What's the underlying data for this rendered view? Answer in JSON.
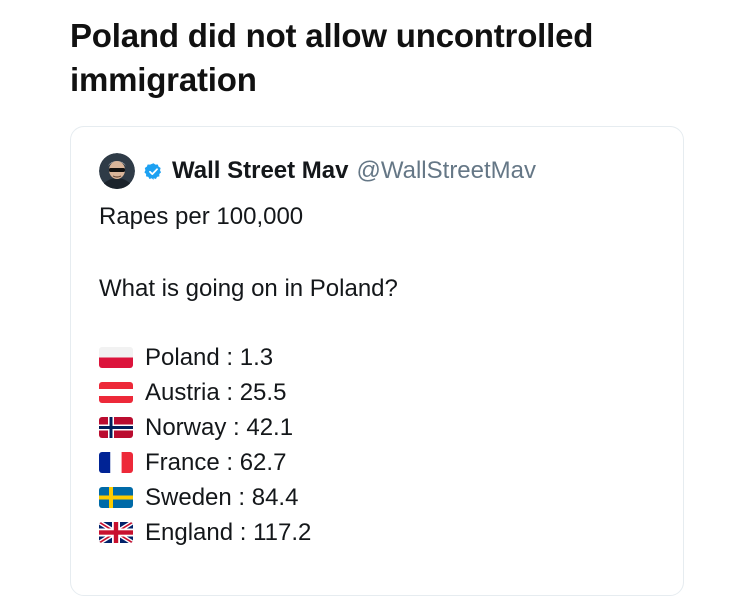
{
  "headline": "Poland did not allow uncontrolled immigration",
  "tweet": {
    "display_name": "Wall Street Mav",
    "handle": "@WallStreetMav",
    "verified_icon": "verified-badge-icon",
    "avatar_icon": "avatar-icon",
    "line_1": "Rapes per 100,000",
    "line_2": "What is going on in Poland?",
    "stats": [
      {
        "flag": "poland-flag-icon",
        "label": "Poland : 1.3"
      },
      {
        "flag": "austria-flag-icon",
        "label": "Austria : 25.5"
      },
      {
        "flag": "norway-flag-icon",
        "label": "Norway : 42.1"
      },
      {
        "flag": "france-flag-icon",
        "label": "France : 62.7"
      },
      {
        "flag": "sweden-flag-icon",
        "label": "Sweden : 84.4"
      },
      {
        "flag": "england-flag-icon",
        "label": "England : 117.2"
      }
    ]
  },
  "colors": {
    "verified_blue": "#1da1f2",
    "handle_gray": "#657786",
    "card_border": "#e6ecf0"
  }
}
